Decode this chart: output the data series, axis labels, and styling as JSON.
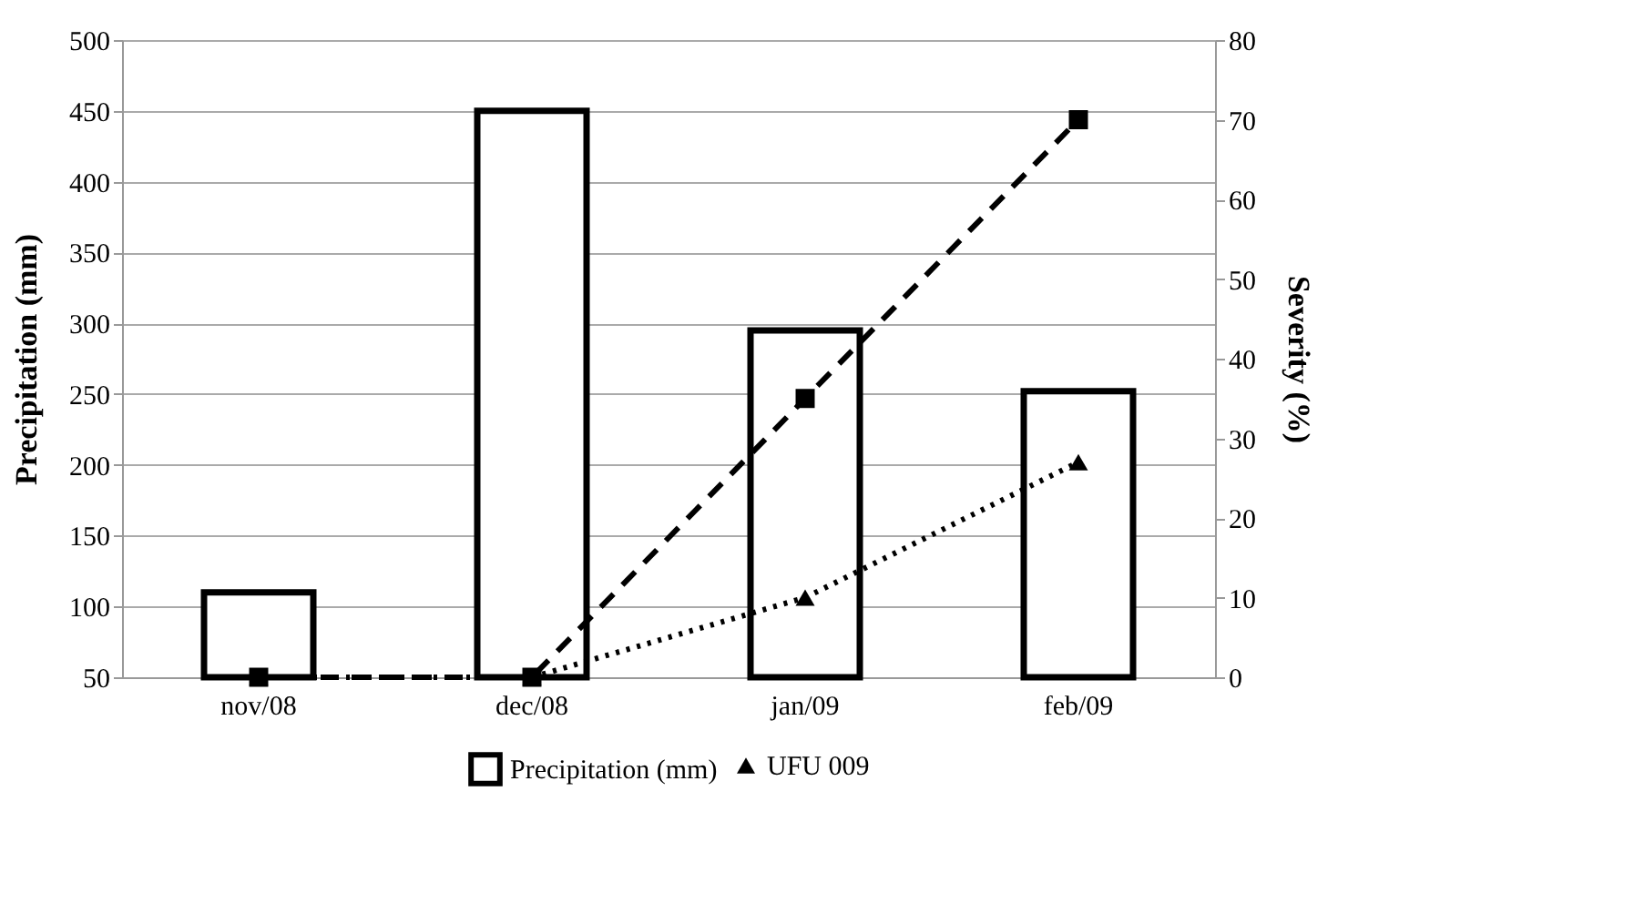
{
  "chart_data": {
    "type": "bar",
    "categories": [
      "nov/08",
      "dec/08",
      "jan/09",
      "feb/09"
    ],
    "ylabel": "Precipitation (mm)",
    "y2label": "Severity (%)",
    "series": [
      {
        "name": "Precipitation (mm)",
        "color": "#000000",
        "values": [
          110,
          450,
          295,
          252
        ]
      },
      {
        "type": "line",
        "axis": "y2",
        "color": "#000000",
        "marker": "square",
        "line_style": "dashed",
        "values": [
          0,
          0,
          35,
          70
        ]
      },
      {
        "name": "UFU 009",
        "type": "line",
        "axis": "y2",
        "color": "#000000",
        "marker": "triangle",
        "line_style": "dotted",
        "values": [
          0,
          0,
          10,
          27
        ]
      }
    ],
    "ylim": [
      50,
      500
    ],
    "yticks": [
      50,
      100,
      150,
      200,
      250,
      300,
      350,
      400,
      450,
      500
    ],
    "y2lim": [
      0,
      80
    ],
    "y2ticks": [
      0,
      10,
      20,
      30,
      40,
      50,
      60,
      70,
      80
    ],
    "grid": "y",
    "legend": "bottom"
  }
}
